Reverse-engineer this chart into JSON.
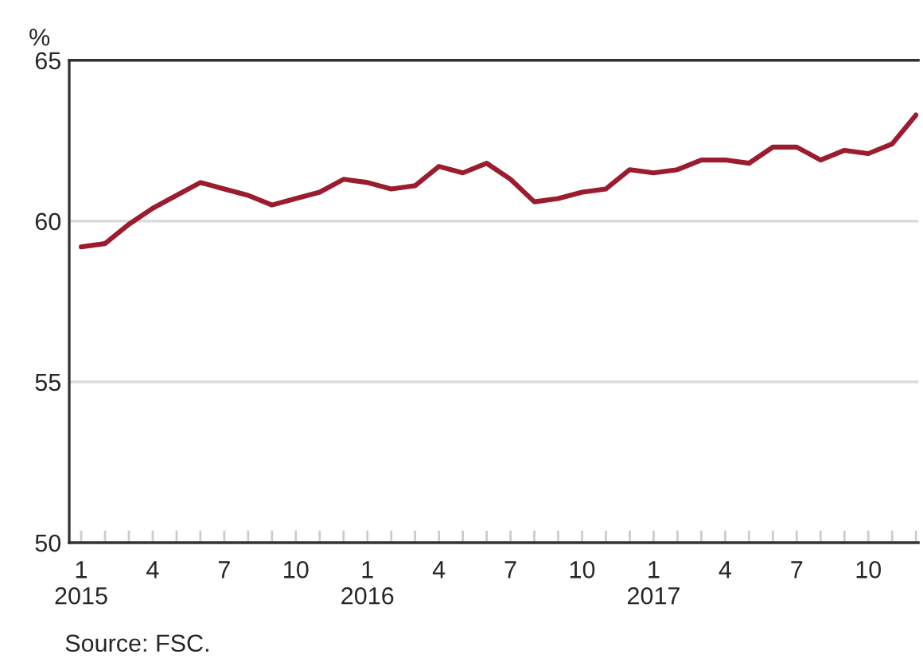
{
  "chart_data": {
    "type": "line",
    "ylabel": "%",
    "categories": [
      "1\n2015",
      null,
      null,
      "4",
      null,
      null,
      "7",
      null,
      null,
      "10",
      null,
      null,
      "1\n2016",
      null,
      null,
      "4",
      null,
      null,
      "7",
      null,
      null,
      "10",
      null,
      null,
      "1\n2017",
      null,
      null,
      "4",
      null,
      null,
      "7",
      null,
      null,
      "10",
      null,
      null
    ],
    "series": [
      {
        "color": "#9b1c2e",
        "values": [
          59.2,
          59.3,
          59.9,
          60.4,
          60.8,
          61.2,
          61.0,
          60.8,
          60.5,
          60.7,
          60.9,
          61.3,
          61.2,
          61.0,
          61.1,
          61.7,
          61.5,
          61.8,
          61.3,
          60.6,
          60.7,
          60.9,
          61.0,
          61.6,
          61.5,
          61.6,
          61.9,
          61.9,
          61.8,
          62.3,
          62.3,
          61.9,
          62.2,
          62.1,
          62.4,
          63.3
        ]
      }
    ],
    "ylim": [
      50,
      65
    ],
    "yticks": [
      50,
      55,
      60,
      65
    ],
    "grid": "y",
    "legend": false,
    "marker": "none",
    "line_style": "solid",
    "annotations": [
      "Source: FSC."
    ]
  }
}
